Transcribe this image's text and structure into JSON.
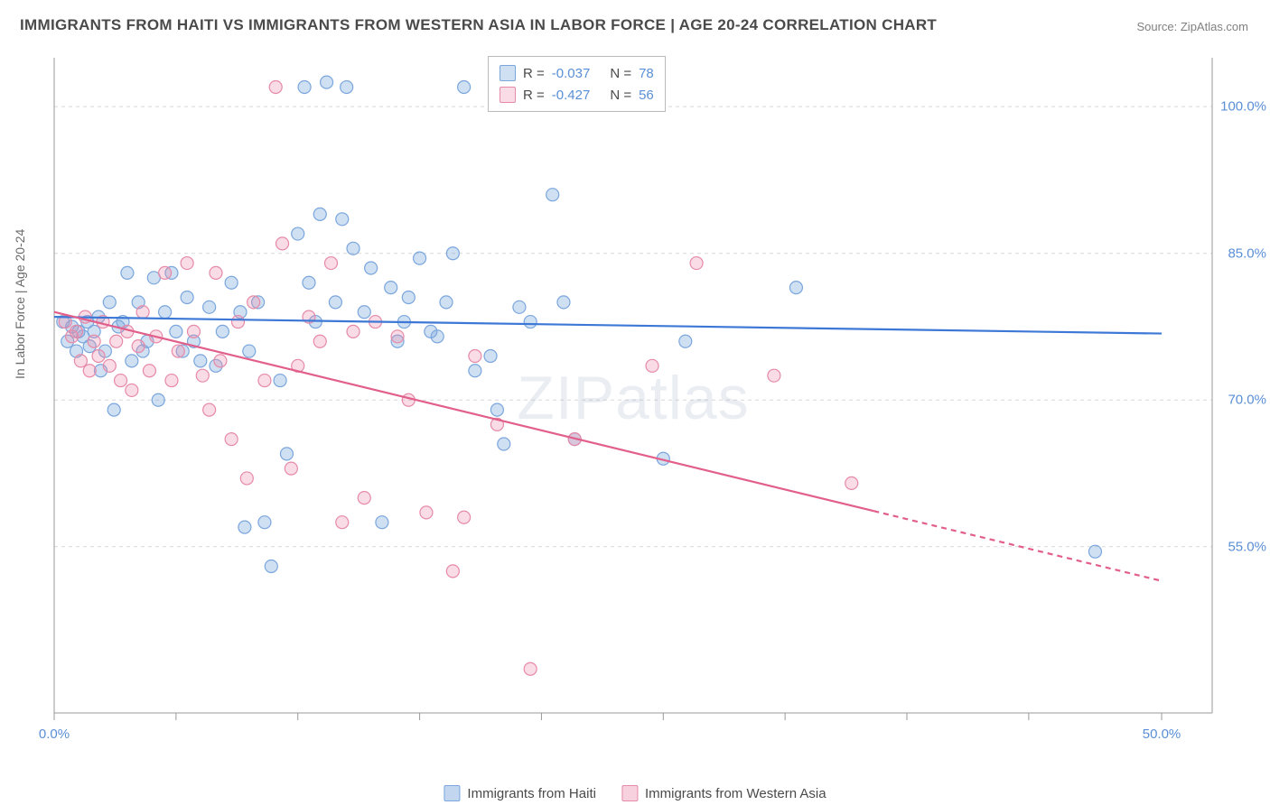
{
  "title": "IMMIGRANTS FROM HAITI VS IMMIGRANTS FROM WESTERN ASIA IN LABOR FORCE | AGE 20-24 CORRELATION CHART",
  "source_prefix": "Source: ",
  "source_name": "ZipAtlas.com",
  "watermark": "ZIPatlas",
  "chart": {
    "type": "scatter-with-regression",
    "y_axis_label": "In Labor Force | Age 20-24",
    "x_range": [
      0,
      50
    ],
    "y_range": [
      38,
      105
    ],
    "y_ticks": [
      55.0,
      70.0,
      85.0,
      100.0
    ],
    "y_tick_labels": [
      "55.0%",
      "70.0%",
      "85.0%",
      "100.0%"
    ],
    "x_ticks": [
      0,
      5.5,
      11,
      16.5,
      22,
      27.5,
      33,
      38.5,
      44,
      50
    ],
    "x_visible_labels": {
      "0": "0.0%",
      "50": "50.0%"
    },
    "grid_color": "#d8d8d8",
    "axis_color": "#9a9a9a",
    "background": "#ffffff",
    "marker_radius": 7,
    "marker_stroke_width": 1.2,
    "line_width": 2.2,
    "series": [
      {
        "name": "Immigrants from Haiti",
        "color_fill": "rgba(120,165,220,0.35)",
        "color_stroke": "#7aa6dd",
        "line_color": "#3d78d6",
        "R": "-0.037",
        "N": "78",
        "regression": {
          "x1": 0,
          "y1": 78.5,
          "x2": 50,
          "y2": 76.8,
          "solid_until_x": 50
        },
        "points": [
          [
            0.4,
            78
          ],
          [
            0.6,
            76
          ],
          [
            0.8,
            77.5
          ],
          [
            1.0,
            75
          ],
          [
            1.1,
            77
          ],
          [
            1.3,
            76.5
          ],
          [
            1.5,
            78
          ],
          [
            1.6,
            75.5
          ],
          [
            1.8,
            77
          ],
          [
            2.0,
            78.5
          ],
          [
            2.1,
            73
          ],
          [
            2.3,
            75
          ],
          [
            2.5,
            80
          ],
          [
            2.7,
            69
          ],
          [
            2.9,
            77.5
          ],
          [
            3.1,
            78
          ],
          [
            3.3,
            83
          ],
          [
            3.5,
            74
          ],
          [
            3.8,
            80
          ],
          [
            4.0,
            75
          ],
          [
            4.2,
            76
          ],
          [
            4.5,
            82.5
          ],
          [
            4.7,
            70
          ],
          [
            5.0,
            79
          ],
          [
            5.3,
            83
          ],
          [
            5.5,
            77
          ],
          [
            5.8,
            75
          ],
          [
            6.0,
            80.5
          ],
          [
            6.3,
            76
          ],
          [
            6.6,
            74
          ],
          [
            7.0,
            79.5
          ],
          [
            7.3,
            73.5
          ],
          [
            7.6,
            77
          ],
          [
            8.0,
            82
          ],
          [
            8.4,
            79
          ],
          [
            8.6,
            57
          ],
          [
            8.8,
            75
          ],
          [
            9.2,
            80
          ],
          [
            9.5,
            57.5
          ],
          [
            9.8,
            53
          ],
          [
            10.2,
            72
          ],
          [
            10.5,
            64.5
          ],
          [
            11.0,
            87
          ],
          [
            11.3,
            102
          ],
          [
            11.5,
            82
          ],
          [
            11.8,
            78
          ],
          [
            12.0,
            89
          ],
          [
            12.3,
            102.5
          ],
          [
            12.7,
            80
          ],
          [
            13.0,
            88.5
          ],
          [
            13.2,
            102
          ],
          [
            13.5,
            85.5
          ],
          [
            14.0,
            79
          ],
          [
            14.3,
            83.5
          ],
          [
            14.8,
            57.5
          ],
          [
            15.2,
            81.5
          ],
          [
            15.5,
            76
          ],
          [
            15.8,
            78
          ],
          [
            16.0,
            80.5
          ],
          [
            16.5,
            84.5
          ],
          [
            17.0,
            77
          ],
          [
            17.3,
            76.5
          ],
          [
            17.7,
            80
          ],
          [
            18.0,
            85
          ],
          [
            18.5,
            102
          ],
          [
            19.0,
            73
          ],
          [
            19.7,
            74.5
          ],
          [
            20.0,
            69
          ],
          [
            20.3,
            65.5
          ],
          [
            21.0,
            79.5
          ],
          [
            21.5,
            78
          ],
          [
            22.5,
            91
          ],
          [
            23.0,
            80
          ],
          [
            23.5,
            66
          ],
          [
            27.5,
            64
          ],
          [
            28.5,
            76
          ],
          [
            33.5,
            81.5
          ],
          [
            47.0,
            54.5
          ]
        ]
      },
      {
        "name": "Immigrants from Western Asia",
        "color_fill": "rgba(235,140,170,0.30)",
        "color_stroke": "#e68aa8",
        "line_color": "#e15f8a",
        "R": "-0.427",
        "N": "56",
        "regression": {
          "x1": 0,
          "y1": 79,
          "x2": 50,
          "y2": 51.5,
          "solid_until_x": 37
        },
        "points": [
          [
            0.5,
            78
          ],
          [
            0.8,
            76.5
          ],
          [
            1.0,
            77
          ],
          [
            1.2,
            74
          ],
          [
            1.4,
            78.5
          ],
          [
            1.6,
            73
          ],
          [
            1.8,
            76
          ],
          [
            2.0,
            74.5
          ],
          [
            2.2,
            78
          ],
          [
            2.5,
            73.5
          ],
          [
            2.8,
            76
          ],
          [
            3.0,
            72
          ],
          [
            3.3,
            77
          ],
          [
            3.5,
            71
          ],
          [
            3.8,
            75.5
          ],
          [
            4.0,
            79
          ],
          [
            4.3,
            73
          ],
          [
            4.6,
            76.5
          ],
          [
            5.0,
            83
          ],
          [
            5.3,
            72
          ],
          [
            5.6,
            75
          ],
          [
            6.0,
            84
          ],
          [
            6.3,
            77
          ],
          [
            6.7,
            72.5
          ],
          [
            7.0,
            69
          ],
          [
            7.3,
            83
          ],
          [
            7.5,
            74
          ],
          [
            8.0,
            66
          ],
          [
            8.3,
            78
          ],
          [
            8.7,
            62
          ],
          [
            9.0,
            80
          ],
          [
            9.5,
            72
          ],
          [
            10.0,
            102
          ],
          [
            10.3,
            86
          ],
          [
            10.7,
            63
          ],
          [
            11.0,
            73.5
          ],
          [
            11.5,
            78.5
          ],
          [
            12.0,
            76
          ],
          [
            12.5,
            84
          ],
          [
            13.0,
            57.5
          ],
          [
            13.5,
            77
          ],
          [
            14.0,
            60
          ],
          [
            14.5,
            78
          ],
          [
            15.5,
            76.5
          ],
          [
            16.0,
            70
          ],
          [
            16.8,
            58.5
          ],
          [
            18.0,
            52.5
          ],
          [
            18.5,
            58
          ],
          [
            19.0,
            74.5
          ],
          [
            20.0,
            67.5
          ],
          [
            21.5,
            42.5
          ],
          [
            23.5,
            66
          ],
          [
            27.0,
            73.5
          ],
          [
            29.0,
            84
          ],
          [
            32.5,
            72.5
          ],
          [
            36.0,
            61.5
          ]
        ]
      }
    ],
    "legend_bottom": [
      {
        "label": "Immigrants from Haiti",
        "fill": "rgba(120,165,220,0.45)",
        "stroke": "#7aa6dd"
      },
      {
        "label": "Immigrants from Western Asia",
        "fill": "rgba(235,140,170,0.40)",
        "stroke": "#e68aa8"
      }
    ]
  }
}
